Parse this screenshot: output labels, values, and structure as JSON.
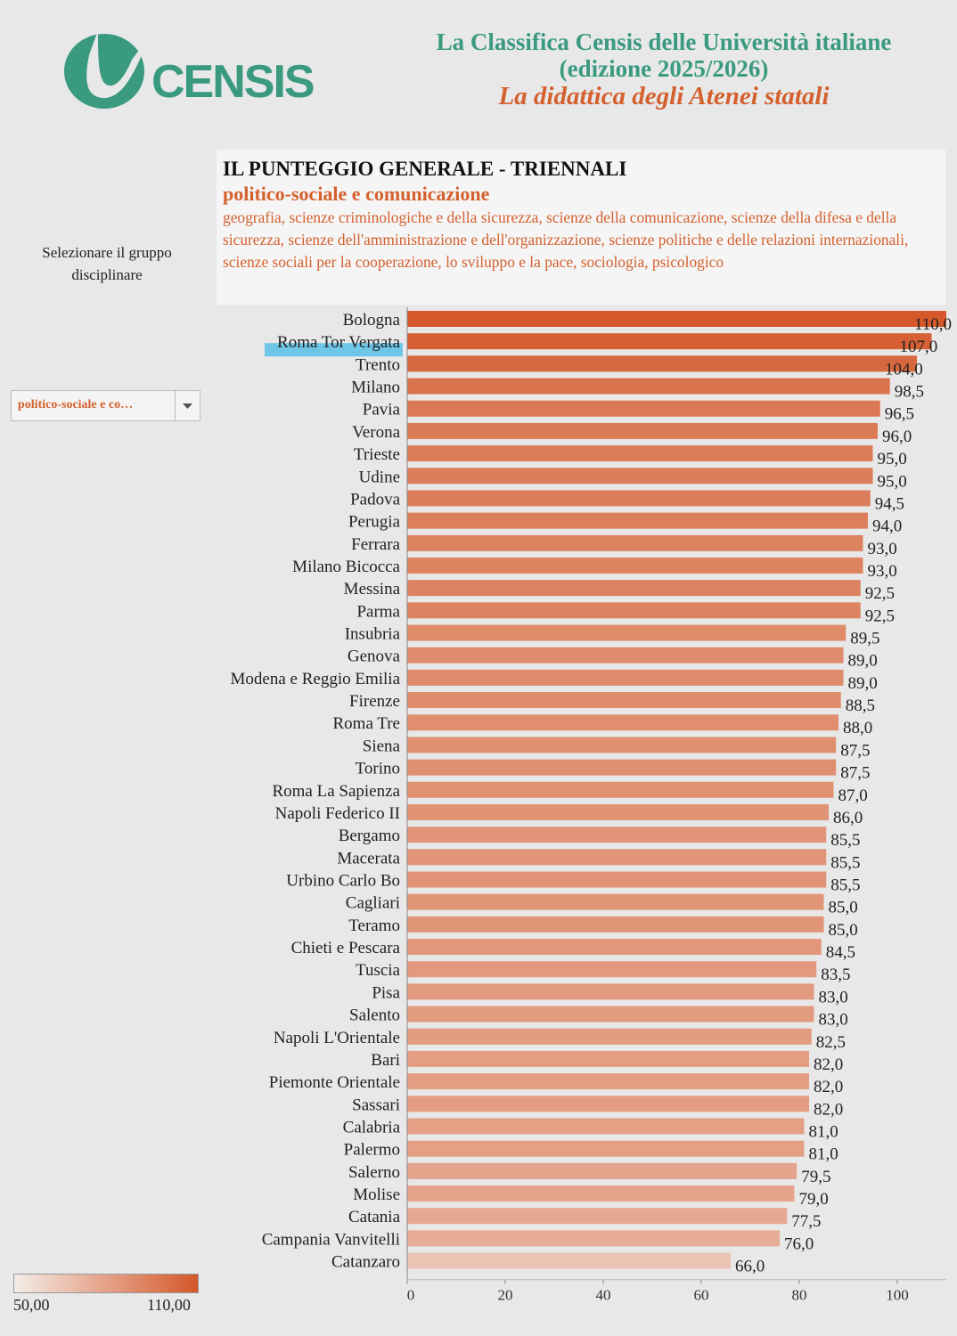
{
  "header": {
    "logo_text": "CENSIS",
    "title_line1": "La Classifica Censis delle Università italiane",
    "title_line2": "(edizione 2025/2026)",
    "subtitle": "La didattica degli Atenei statali"
  },
  "panel": {
    "title": "IL PUNTEGGIO GENERALE - TRIENNALI",
    "group": "politico-sociale e comunicazione",
    "description": "geografia, scienze criminologiche e della sicurezza, scienze della comunicazione, scienze della difesa e della sicurezza, scienze dell'amministrazione e dell'organizzazione, scienze politiche e delle relazioni internazionali, scienze sociali per la cooperazione, lo sviluppo e la pace, sociologia, psicologico"
  },
  "selector": {
    "label": "Selezionare il gruppo disciplinare",
    "value": "politico-sociale e co…",
    "icon": "chevron-down-icon"
  },
  "legend": {
    "min_label": "50,00",
    "max_label": "110,00",
    "min": 50,
    "max": 110
  },
  "colors": {
    "accent_green": "#3a9a80",
    "accent_orange": "#d4602e",
    "highlight": "#6ec6e6"
  },
  "chart_data": {
    "type": "bar",
    "orientation": "horizontal",
    "highlighted": "Roma Tor Vergata",
    "xlim": [
      0,
      110
    ],
    "xticks": [
      0,
      20,
      40,
      60,
      80,
      100
    ],
    "categories": [
      "Bologna",
      "Roma Tor Vergata",
      "Trento",
      "Milano",
      "Pavia",
      "Verona",
      "Trieste",
      "Udine",
      "Padova",
      "Perugia",
      "Ferrara",
      "Milano Bicocca",
      "Messina",
      "Parma",
      "Insubria",
      "Genova",
      "Modena e Reggio Emilia",
      "Firenze",
      "Roma Tre",
      "Siena",
      "Torino",
      "Roma La Sapienza",
      "Napoli Federico II",
      "Bergamo",
      "Macerata",
      "Urbino Carlo Bo",
      "Cagliari",
      "Teramo",
      "Chieti e Pescara",
      "Tuscia",
      "Pisa",
      "Salento",
      "Napoli L'Orientale",
      "Bari",
      "Piemonte Orientale",
      "Sassari",
      "Calabria",
      "Palermo",
      "Salerno",
      "Molise",
      "Catania",
      "Campania Vanvitelli",
      "Catanzaro"
    ],
    "values": [
      110.0,
      107.0,
      104.0,
      98.5,
      96.5,
      96.0,
      95.0,
      95.0,
      94.5,
      94.0,
      93.0,
      93.0,
      92.5,
      92.5,
      89.5,
      89.0,
      89.0,
      88.5,
      88.0,
      87.5,
      87.5,
      87.0,
      86.0,
      85.5,
      85.5,
      85.5,
      85.0,
      85.0,
      84.5,
      83.5,
      83.0,
      83.0,
      82.5,
      82.0,
      82.0,
      82.0,
      81.0,
      81.0,
      79.5,
      79.0,
      77.5,
      76.0,
      66.0
    ],
    "value_labels": [
      "110,0",
      "107,0",
      "104,0",
      "98,5",
      "96,5",
      "96,0",
      "95,0",
      "95,0",
      "94,5",
      "94,0",
      "93,0",
      "93,0",
      "92,5",
      "92,5",
      "89,5",
      "89,0",
      "89,0",
      "88,5",
      "88,0",
      "87,5",
      "87,5",
      "87,0",
      "86,0",
      "85,5",
      "85,5",
      "85,5",
      "85,0",
      "85,0",
      "84,5",
      "83,5",
      "83,0",
      "83,0",
      "82,5",
      "82,0",
      "82,0",
      "82,0",
      "81,0",
      "81,0",
      "79,5",
      "79,0",
      "77,5",
      "76,0",
      "66,0"
    ]
  }
}
